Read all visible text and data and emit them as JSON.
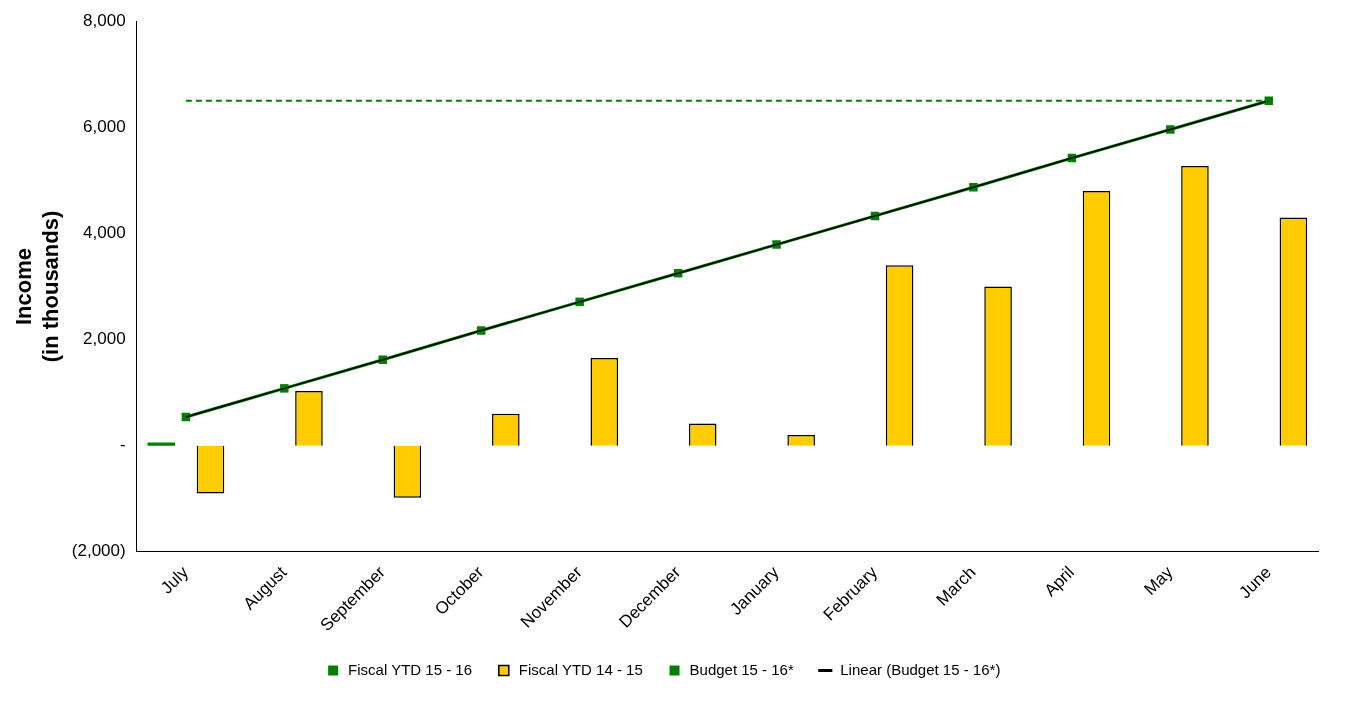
{
  "chart_data": {
    "type": "bar",
    "ylabel": "Income\n(in thousands)",
    "categories": [
      "July",
      "August",
      "September",
      "October",
      "November",
      "December",
      "January",
      "February",
      "March",
      "April",
      "May",
      "June"
    ],
    "series": [
      {
        "name": "Fiscal YTD 15 - 16",
        "color": "#008000",
        "values": [
          60,
          null,
          null,
          null,
          null,
          null,
          null,
          null,
          null,
          null,
          null,
          null
        ]
      },
      {
        "name": "Fiscal YTD 14 - 15",
        "color": "#ffcc00",
        "values": [
          -900,
          1030,
          -980,
          600,
          1650,
          420,
          200,
          3400,
          3000,
          4800,
          5270,
          4300
        ]
      },
      {
        "name": "Budget 15 - 16*",
        "type": "line",
        "color": "#008000",
        "marker": "square",
        "values": [
          540,
          1080,
          1620,
          2170,
          2710,
          3250,
          3790,
          4330,
          4870,
          5420,
          5960,
          6500
        ]
      },
      {
        "name": "Linear (Budget 15 - 16*)",
        "type": "line",
        "color": "#000000",
        "marker": "none",
        "values": [
          540,
          1080,
          1620,
          2170,
          2710,
          3250,
          3790,
          4330,
          4870,
          5420,
          5960,
          6500
        ]
      }
    ],
    "ylim": [
      -2000,
      8000
    ],
    "yticks": [
      {
        "value": -2000,
        "label": "(2,000)"
      },
      {
        "value": 0,
        "label": "-"
      },
      {
        "value": 2000,
        "label": "2,000"
      },
      {
        "value": 4000,
        "label": "4,000"
      },
      {
        "value": 6000,
        "label": "6,000"
      },
      {
        "value": 8000,
        "label": "8,000"
      }
    ],
    "ref_lines": [
      {
        "axis": "y",
        "value": 6500,
        "color": "#008000",
        "line_style": "dashed"
      }
    ],
    "grid": false,
    "legend": "bottom"
  }
}
